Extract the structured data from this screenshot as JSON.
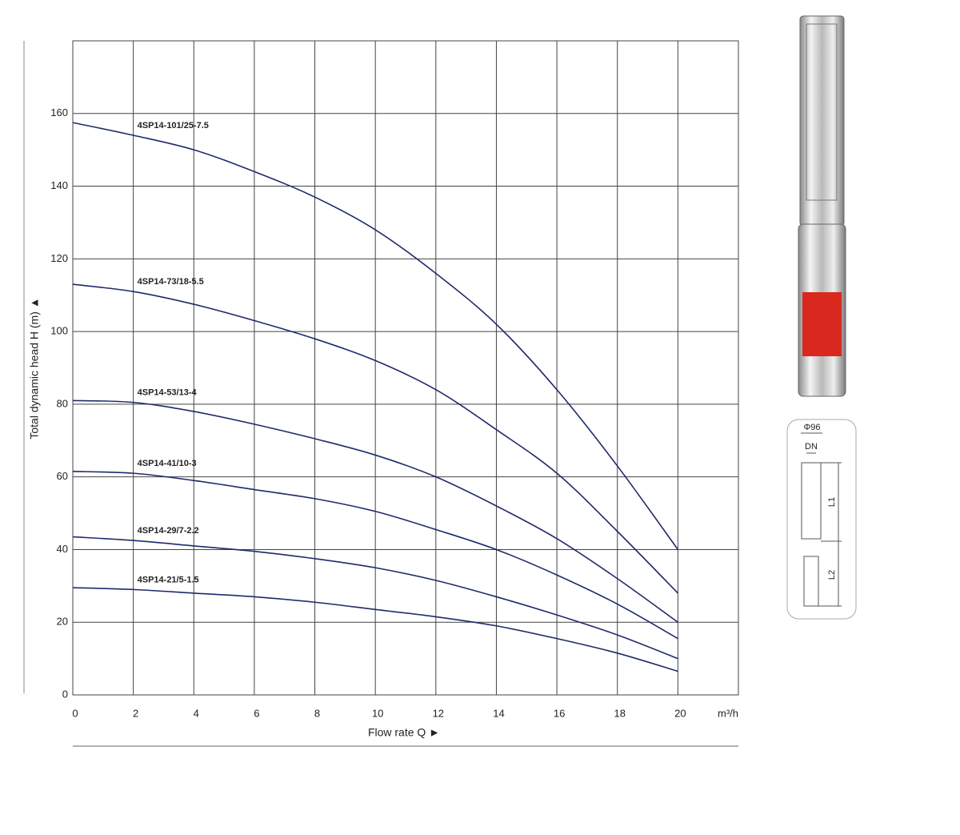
{
  "chart_data": {
    "type": "line",
    "x_label": "Flow rate Q ►",
    "x_unit": "m³/h",
    "y_label": "Total dynamic head H (m) ▲",
    "x": [
      0,
      2,
      4,
      6,
      8,
      10,
      12,
      14,
      16,
      18,
      20
    ],
    "xlim": [
      0,
      22
    ],
    "ylim": [
      0,
      180
    ],
    "xticks": [
      0,
      2,
      4,
      6,
      8,
      10,
      12,
      14,
      16,
      18,
      20
    ],
    "yticks": [
      0,
      20,
      40,
      60,
      80,
      100,
      120,
      140,
      160
    ],
    "grid": true,
    "series": [
      {
        "name": "4SP14-101/25-7.5",
        "color": "#1f2a6b",
        "values": [
          157.5,
          154,
          150,
          144,
          137,
          128,
          116,
          102,
          84,
          63,
          40
        ]
      },
      {
        "name": "4SP14-73/18-5.5",
        "color": "#1f2a6b",
        "values": [
          113,
          111,
          107.5,
          103,
          98,
          92,
          84,
          73,
          61,
          45,
          28
        ]
      },
      {
        "name": "4SP14-53/13-4",
        "color": "#1f2a6b",
        "values": [
          81,
          80.5,
          78,
          74.5,
          70.5,
          66,
          60,
          52,
          43,
          32,
          20
        ]
      },
      {
        "name": "4SP14-41/10-3",
        "color": "#1f2a6b",
        "values": [
          61.5,
          61,
          59,
          56.5,
          54,
          50.5,
          45.5,
          40,
          33,
          25,
          15.5
        ]
      },
      {
        "name": "4SP14-29/7-2.2",
        "color": "#1f2a6b",
        "values": [
          43.5,
          42.5,
          41,
          39.5,
          37.5,
          35,
          31.5,
          27,
          22,
          16.5,
          10
        ]
      },
      {
        "name": "4SP14-21/5-1.5",
        "color": "#1f2a6b",
        "values": [
          29.5,
          29,
          28,
          27,
          25.5,
          23.5,
          21.5,
          19,
          15.5,
          11.5,
          6.5
        ]
      }
    ]
  },
  "pump_drawing": {
    "diameter": "Φ96",
    "dn": "DN",
    "l1": "L1",
    "l2": "L2"
  }
}
